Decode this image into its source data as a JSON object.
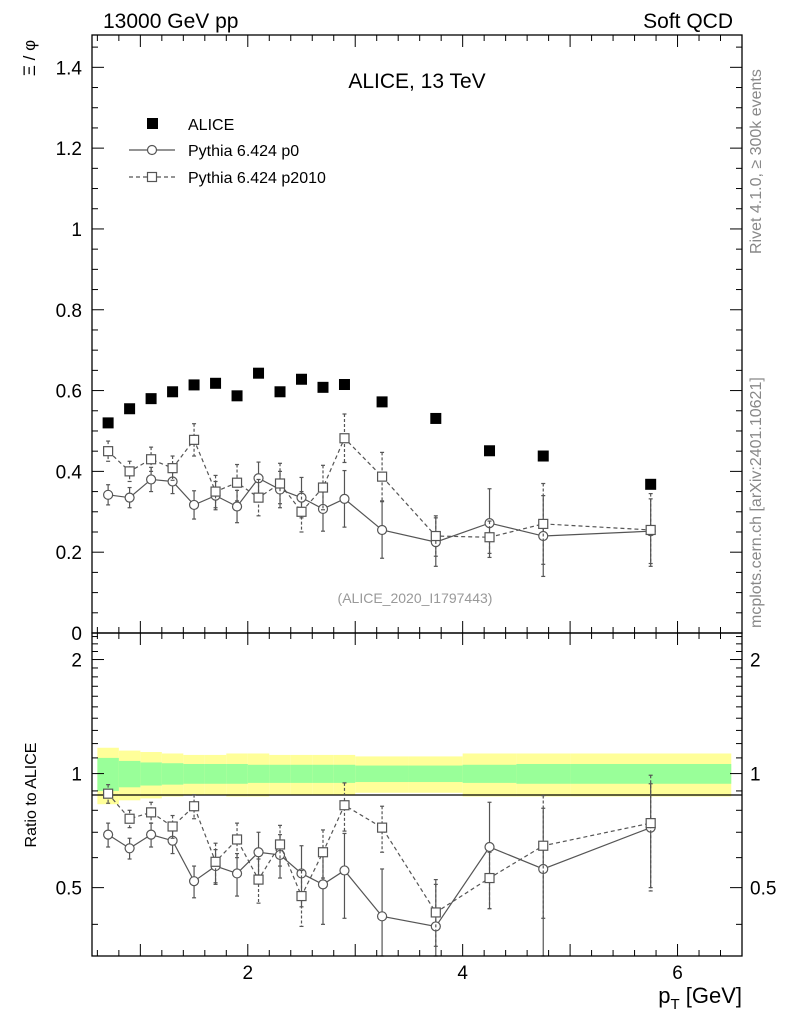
{
  "header": {
    "left": "13000 GeV pp",
    "right": "Soft QCD"
  },
  "side_labels": {
    "rivet": "Rivet 4.1.0, ≥ 300k events",
    "mcplots": "mcplots.cern.ch [arXiv:2401.10621]"
  },
  "chart_data": [
    {
      "type": "scatter",
      "title": "ALICE, 13 TeV",
      "analysis_id": "(ALICE_2020_I1797443)",
      "ylabel_sym": "Ξ / φ",
      "xlabel": "",
      "xlim": [
        0.55,
        6.6
      ],
      "ylim": [
        0,
        1.48
      ],
      "yticks": [
        0,
        0.2,
        0.4,
        0.6,
        0.8,
        1,
        1.2,
        1.4
      ],
      "ytick_labels": [
        "0",
        "0.2",
        "0.4",
        "0.6",
        "0.8",
        "1",
        "1.2",
        "1.4"
      ],
      "legend": {
        "placement": "top-left",
        "entries": [
          "ALICE",
          "Pythia 6.424 p0",
          "Pythia 6.424 p2010"
        ]
      },
      "series": [
        {
          "name": "ALICE",
          "marker": "filled-square",
          "x": [
            0.7,
            0.9,
            1.1,
            1.3,
            1.5,
            1.7,
            1.9,
            2.1,
            2.3,
            2.5,
            2.7,
            2.9,
            3.25,
            3.75,
            4.25,
            4.75,
            5.75
          ],
          "y": [
            0.52,
            0.555,
            0.58,
            0.597,
            0.614,
            0.618,
            0.587,
            0.643,
            0.597,
            0.628,
            0.608,
            0.615,
            0.572,
            0.531,
            0.451,
            0.438,
            0.368
          ]
        },
        {
          "name": "Pythia 6.424 p0",
          "marker": "open-circle",
          "line": "solid",
          "x": [
            0.7,
            0.9,
            1.1,
            1.3,
            1.5,
            1.7,
            1.9,
            2.1,
            2.3,
            2.5,
            2.7,
            2.9,
            3.25,
            3.75,
            4.25,
            4.75,
            5.75
          ],
          "y": [
            0.342,
            0.335,
            0.38,
            0.375,
            0.317,
            0.34,
            0.313,
            0.383,
            0.355,
            0.335,
            0.307,
            0.332,
            0.255,
            0.225,
            0.272,
            0.24,
            0.252
          ],
          "err": [
            0.025,
            0.025,
            0.03,
            0.03,
            0.035,
            0.035,
            0.04,
            0.04,
            0.045,
            0.05,
            0.055,
            0.07,
            0.07,
            0.06,
            0.085,
            0.1,
            0.08
          ]
        },
        {
          "name": "Pythia 6.424 p2010",
          "marker": "open-square",
          "line": "dashed",
          "x": [
            0.7,
            0.9,
            1.1,
            1.3,
            1.5,
            1.7,
            1.9,
            2.1,
            2.3,
            2.5,
            2.7,
            2.9,
            3.25,
            3.75,
            4.25,
            4.75,
            5.75
          ],
          "y": [
            0.45,
            0.4,
            0.43,
            0.408,
            0.478,
            0.35,
            0.372,
            0.335,
            0.37,
            0.3,
            0.36,
            0.482,
            0.387,
            0.24,
            0.237,
            0.27,
            0.255
          ],
          "err": [
            0.025,
            0.025,
            0.03,
            0.03,
            0.04,
            0.04,
            0.045,
            0.045,
            0.05,
            0.05,
            0.055,
            0.06,
            0.06,
            0.05,
            0.04,
            0.1,
            0.09
          ]
        }
      ]
    },
    {
      "type": "scatter",
      "ylabel": "Ratio to ALICE",
      "xlabel": "p_T [GeV]",
      "xlabel_main": "p",
      "xlabel_sub": "T",
      "xlabel_unit": " [GeV]",
      "xlim": [
        0.55,
        6.6
      ],
      "ylim": [
        0.33,
        2.35
      ],
      "yscale": "log",
      "yticks": [
        0.5,
        1,
        2
      ],
      "ytick_labels": [
        "0.5",
        "1",
        "2"
      ],
      "xticks": [
        2,
        4,
        6
      ],
      "xtick_labels": [
        "2",
        "4",
        "6"
      ],
      "uncertainty_bands": {
        "x_edges": [
          0.6,
          0.8,
          1.0,
          1.2,
          1.4,
          1.6,
          1.8,
          2.0,
          2.2,
          2.4,
          2.6,
          2.8,
          3.0,
          3.5,
          4.0,
          4.5,
          5.0,
          6.5
        ],
        "stat_halfwidth": [
          0.1,
          0.08,
          0.07,
          0.065,
          0.06,
          0.06,
          0.06,
          0.055,
          0.055,
          0.055,
          0.055,
          0.055,
          0.05,
          0.05,
          0.055,
          0.06,
          0.06
        ],
        "total_halfwidth": [
          0.17,
          0.15,
          0.14,
          0.13,
          0.12,
          0.12,
          0.13,
          0.13,
          0.12,
          0.12,
          0.12,
          0.12,
          0.11,
          0.11,
          0.13,
          0.13,
          0.13
        ],
        "stat_color": "#99ff99",
        "total_color": "#ffff99"
      },
      "series": [
        {
          "name": "Pythia 6.424 p0",
          "marker": "open-circle",
          "line": "solid",
          "x": [
            0.7,
            0.9,
            1.1,
            1.3,
            1.5,
            1.7,
            1.9,
            2.1,
            2.3,
            2.5,
            2.7,
            2.9,
            3.25,
            3.75,
            4.25,
            4.75,
            5.75
          ],
          "y": [
            0.69,
            0.635,
            0.69,
            0.665,
            0.52,
            0.57,
            0.545,
            0.62,
            0.61,
            0.545,
            0.51,
            0.555,
            0.42,
            0.395,
            0.64,
            0.56,
            0.72
          ],
          "err": [
            0.05,
            0.04,
            0.05,
            0.05,
            0.05,
            0.06,
            0.07,
            0.08,
            0.08,
            0.1,
            0.11,
            0.14,
            0.14,
            0.13,
            0.2,
            0.25,
            0.22
          ]
        },
        {
          "name": "Pythia 6.424 p2010",
          "marker": "open-square",
          "line": "dashed",
          "x": [
            0.7,
            0.9,
            1.1,
            1.3,
            1.5,
            1.7,
            1.9,
            2.1,
            2.3,
            2.5,
            2.7,
            2.9,
            3.25,
            3.75,
            4.25,
            4.75,
            5.75
          ],
          "y": [
            0.885,
            0.76,
            0.79,
            0.725,
            0.82,
            0.585,
            0.67,
            0.525,
            0.65,
            0.475,
            0.62,
            0.825,
            0.72,
            0.43,
            0.53,
            0.645,
            0.74
          ],
          "err": [
            0.05,
            0.04,
            0.05,
            0.05,
            0.06,
            0.07,
            0.07,
            0.07,
            0.08,
            0.08,
            0.09,
            0.12,
            0.1,
            0.08,
            0.09,
            0.23,
            0.25
          ]
        }
      ]
    }
  ],
  "colors": {
    "data": "#000000",
    "mc": "#555555",
    "side_text": "#888888",
    "analysis_id": "#999999"
  }
}
